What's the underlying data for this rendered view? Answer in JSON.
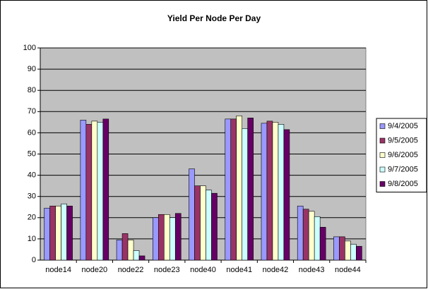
{
  "chart_data": {
    "type": "bar",
    "title": "Yield Per Node Per Day",
    "categories": [
      "node14",
      "node20",
      "node22",
      "node23",
      "node40",
      "node41",
      "node42",
      "node43",
      "node44"
    ],
    "series": [
      {
        "name": "9/4/2005",
        "color": "#9999ff",
        "values": [
          24.5,
          66,
          9.5,
          20,
          43,
          66.5,
          64.5,
          25.5,
          11
        ]
      },
      {
        "name": "9/5/2005",
        "color": "#993366",
        "values": [
          25.5,
          64,
          12.5,
          21.5,
          35,
          66.5,
          65.5,
          24,
          11
        ]
      },
      {
        "name": "9/6/2005",
        "color": "#ffffcc",
        "values": [
          25.5,
          65.5,
          9.5,
          21.5,
          35,
          68,
          65,
          23,
          9
        ]
      },
      {
        "name": "9/7/2005",
        "color": "#ccffff",
        "values": [
          26.5,
          65,
          4.5,
          20,
          33,
          62,
          64,
          20.5,
          7.5
        ]
      },
      {
        "name": "9/8/2005",
        "color": "#660066",
        "values": [
          25.5,
          66.5,
          2,
          22,
          31.5,
          67,
          61.5,
          15.5,
          6.5
        ]
      }
    ],
    "ylim": [
      0,
      100
    ],
    "yticks": [
      0,
      10,
      20,
      30,
      40,
      50,
      60,
      70,
      80,
      90,
      100
    ],
    "grid": true,
    "legend": "right"
  }
}
